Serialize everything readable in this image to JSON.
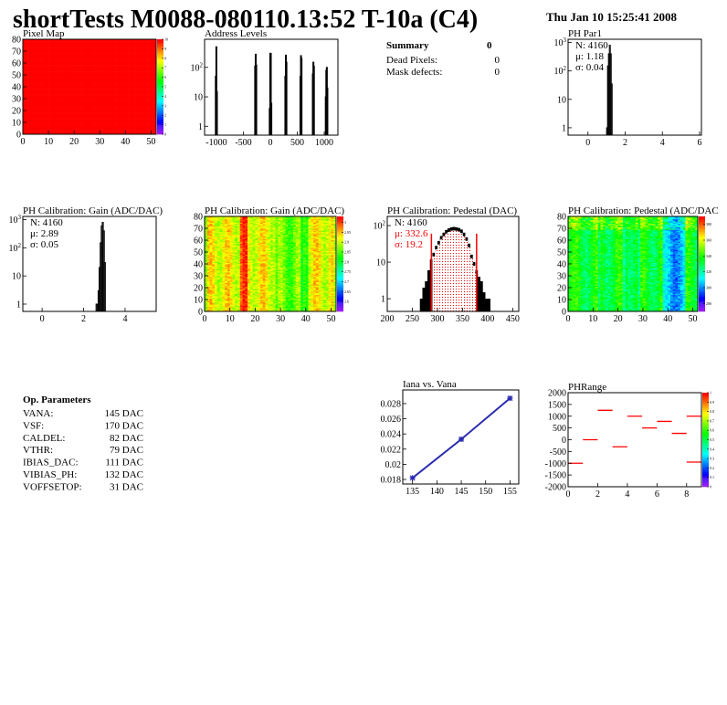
{
  "header": {
    "title": "shortTests M0088-080110.13:52 T-10a (C4)",
    "date": "Thu Jan 10 15:25:41 2008"
  },
  "summary": {
    "title": "Summary",
    "total": "0",
    "rows": [
      {
        "label": "Dead Pixels:",
        "value": "0"
      },
      {
        "label": "Mask defects:",
        "value": "0"
      }
    ]
  },
  "op_parameters": {
    "title": "Op. Parameters",
    "rows": [
      {
        "label": "VANA:",
        "value": "145 DAC"
      },
      {
        "label": "VSF:",
        "value": "170 DAC"
      },
      {
        "label": "CALDEL:",
        "value": "82 DAC"
      },
      {
        "label": "VTHR:",
        "value": "79 DAC"
      },
      {
        "label": "IBIAS_DAC:",
        "value": "111 DAC"
      },
      {
        "label": "VIBIAS_PH:",
        "value": "132 DAC"
      },
      {
        "label": "VOFFSETOP:",
        "value": "31 DAC"
      }
    ]
  },
  "colors": {
    "histogram": "#000000",
    "fit": "#ff0000",
    "graph": "#2b2bb0",
    "phrange": "#ff0000"
  },
  "chart_data": [
    {
      "id": "pixelmap",
      "type": "heatmap",
      "title": "Pixel Map",
      "xlim": [
        0,
        52
      ],
      "ylim": [
        0,
        80
      ],
      "zlim": [
        0,
        10
      ],
      "xticks": [
        "0",
        "10",
        "20",
        "30",
        "40",
        "50"
      ],
      "yticks": [
        "0",
        "10",
        "20",
        "30",
        "40",
        "50",
        "60",
        "70",
        "80"
      ],
      "zticks": [
        "0",
        "1",
        "2",
        "3",
        "4",
        "5",
        "6",
        "7",
        "8",
        "9",
        "10"
      ],
      "uniform_value": 10
    },
    {
      "id": "address",
      "type": "bar",
      "title": "Address Levels",
      "log_y": true,
      "xlim": [
        -1220,
        1254
      ],
      "ylim": [
        0.5,
        900
      ],
      "xticks": [
        "-1000",
        "-500",
        "0",
        "500",
        "1000"
      ],
      "yticks": [
        "1",
        "10",
        "10^2"
      ],
      "bin_width": 10,
      "bins": [
        [
          -1020,
          50
        ],
        [
          -1010,
          500
        ],
        [
          -1000,
          15
        ],
        [
          -290,
          110
        ],
        [
          -280,
          280
        ],
        [
          -270,
          120
        ],
        [
          -20,
          4
        ],
        [
          -10,
          300
        ],
        [
          0,
          300
        ],
        [
          10,
          6
        ],
        [
          270,
          50
        ],
        [
          280,
          260
        ],
        [
          290,
          150
        ],
        [
          550,
          50
        ],
        [
          560,
          250
        ],
        [
          570,
          200
        ],
        [
          780,
          60
        ],
        [
          790,
          150
        ],
        [
          800,
          110
        ],
        [
          1020,
          10
        ],
        [
          1030,
          80
        ],
        [
          1040,
          100
        ],
        [
          1050,
          20
        ]
      ]
    },
    {
      "id": "phpar1",
      "type": "bar",
      "title": "PH Par1",
      "log_y": true,
      "xlim": [
        -1.07,
        6.1
      ],
      "ylim": [
        0.55,
        1300
      ],
      "xticks": [
        "0",
        "2",
        "4",
        "6"
      ],
      "yticks": [
        "1",
        "10",
        "10^2",
        "10^3"
      ],
      "stats": {
        "N": "N: 4160",
        "mean": "μ: 1.18",
        "sigma": "σ: 0.04"
      },
      "bin_width": 0.05,
      "bins": [
        [
          1.0,
          1
        ],
        [
          1.05,
          150
        ],
        [
          1.1,
          400
        ],
        [
          1.15,
          800
        ],
        [
          1.2,
          400
        ],
        [
          1.25,
          35
        ]
      ]
    },
    {
      "id": "gainhist",
      "type": "bar",
      "title": "PH Calibration: Gain (ADC/DAC)",
      "log_y": true,
      "xlim": [
        -0.93,
        5.5
      ],
      "ylim": [
        0.55,
        1300
      ],
      "xticks": [
        "0",
        "2",
        "4"
      ],
      "yticks": [
        "1",
        "10",
        "10^2",
        "10^3"
      ],
      "stats": {
        "N": "N: 4160",
        "mean": "μ: 2.89",
        "sigma": "σ: 0.05"
      },
      "bin_width": 0.05,
      "bins": [
        [
          2.6,
          1
        ],
        [
          2.65,
          1
        ],
        [
          2.7,
          3
        ],
        [
          2.75,
          20
        ],
        [
          2.8,
          150
        ],
        [
          2.85,
          600
        ],
        [
          2.9,
          800
        ],
        [
          2.95,
          400
        ],
        [
          3.0,
          30
        ]
      ]
    },
    {
      "id": "gainmap",
      "type": "heatmap",
      "title": "PH Calibration: Gain (ADC/DAC)",
      "xlim": [
        0,
        52
      ],
      "ylim": [
        0,
        80
      ],
      "zlim": [
        2.55,
        3.03
      ],
      "xticks": [
        "0",
        "10",
        "20",
        "30",
        "40",
        "50"
      ],
      "yticks": [
        "0",
        "10",
        "20",
        "30",
        "40",
        "50",
        "60",
        "70",
        "80"
      ],
      "zticks": [
        "2.6",
        "2.65",
        "2.7",
        "2.75",
        "2.8",
        "2.85",
        "2.9",
        "2.95",
        "3"
      ]
    },
    {
      "id": "pedhist",
      "type": "bar",
      "title": "PH Calibration: Pedestal (DAC)",
      "log_y": true,
      "xlim": [
        200,
        462
      ],
      "ylim": [
        0.45,
        178
      ],
      "xticks": [
        "200",
        "250",
        "300",
        "350",
        "400",
        "450"
      ],
      "yticks": [
        "1",
        "10",
        "10^2"
      ],
      "stats": {
        "N": "N: 4160",
        "mean": "μ: 332.6",
        "sigma": "σ: 19.2"
      },
      "fit_range": [
        288,
        378
      ],
      "bin_width": 5,
      "bins": [
        [
          265,
          1
        ],
        [
          270,
          2
        ],
        [
          275,
          3
        ],
        [
          280,
          6
        ],
        [
          285,
          12
        ],
        [
          290,
          18
        ],
        [
          295,
          28
        ],
        [
          300,
          38
        ],
        [
          305,
          52
        ],
        [
          310,
          64
        ],
        [
          315,
          76
        ],
        [
          320,
          84
        ],
        [
          325,
          90
        ],
        [
          330,
          92
        ],
        [
          335,
          90
        ],
        [
          340,
          86
        ],
        [
          345,
          78
        ],
        [
          350,
          64
        ],
        [
          355,
          48
        ],
        [
          360,
          32
        ],
        [
          365,
          16
        ],
        [
          370,
          10
        ],
        [
          375,
          6
        ],
        [
          380,
          4
        ],
        [
          385,
          3
        ],
        [
          390,
          1.5
        ],
        [
          395,
          1
        ],
        [
          400,
          1
        ]
      ]
    },
    {
      "id": "pedmap",
      "type": "heatmap",
      "title": "PH Calibration: Pedestal (ADC/DAC",
      "xlim": [
        0,
        52
      ],
      "ylim": [
        0,
        80
      ],
      "zlim": [
        270,
        390
      ],
      "xticks": [
        "0",
        "10",
        "20",
        "30",
        "40",
        "50"
      ],
      "yticks": [
        "0",
        "10",
        "20",
        "30",
        "40",
        "50",
        "60",
        "70",
        "80"
      ],
      "zticks": [
        "280",
        "300",
        "320",
        "340",
        "360",
        "380"
      ]
    },
    {
      "id": "iana",
      "type": "line",
      "title": "Iana vs. Vana",
      "xlim": [
        133,
        156.8
      ],
      "ylim": [
        0.0174,
        0.0298
      ],
      "xticks": [
        "135",
        "140",
        "145",
        "150",
        "155"
      ],
      "yticks": [
        "0.018",
        "0.02",
        "0.022",
        "0.024",
        "0.026",
        "0.028"
      ],
      "x": [
        135,
        145,
        155
      ],
      "y": [
        0.0182,
        0.0233,
        0.0287
      ]
    },
    {
      "id": "phrange",
      "type": "heatmap",
      "title": "PHRange",
      "xlim": [
        0,
        9
      ],
      "ylim": [
        -2000,
        2000
      ],
      "zlim": [
        0,
        1
      ],
      "xticks": [
        "0",
        "2",
        "4",
        "6",
        "8"
      ],
      "yticks": [
        "-2000",
        "-1500",
        "-1000",
        "-500",
        "0",
        "500",
        "1000",
        "1500",
        "2000"
      ],
      "zticks": [
        "0",
        "0.1",
        "0.2",
        "0.3",
        "0.4",
        "0.5",
        "0.6",
        "0.7",
        "0.8",
        "0.9",
        "1"
      ],
      "segments": [
        [
          0,
          -1000
        ],
        [
          1,
          0
        ],
        [
          2,
          1250
        ],
        [
          3,
          -300
        ],
        [
          4,
          1000
        ],
        [
          5,
          500
        ],
        [
          6,
          780
        ],
        [
          7,
          270
        ],
        [
          8,
          1000
        ],
        [
          8,
          -950
        ]
      ]
    }
  ]
}
